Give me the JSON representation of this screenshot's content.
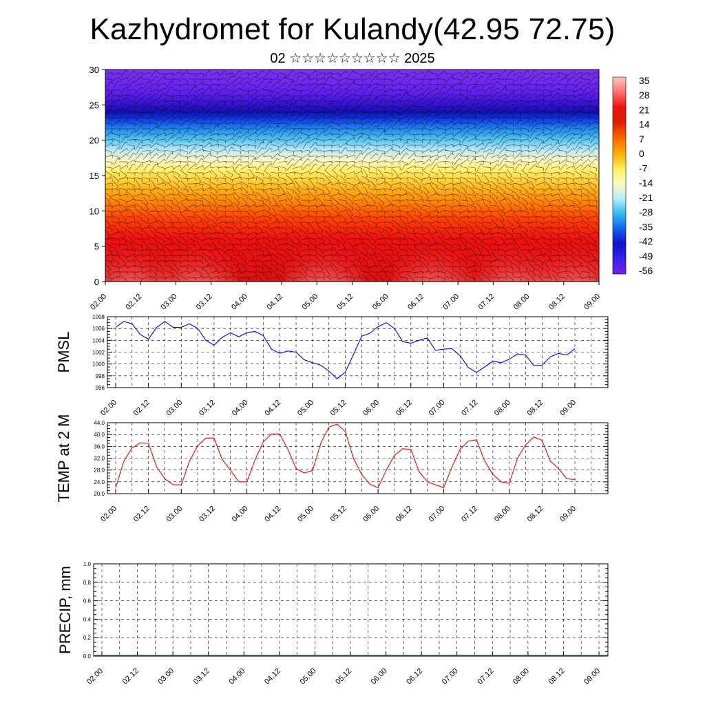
{
  "title": "Kazhydromet for Kulandy(42.95 72.75)",
  "subtitle": "02 ☆☆☆☆☆☆☆☆☆ 2025",
  "time_ticks": [
    "02.00",
    "02.12",
    "03.00",
    "03.12",
    "04.00",
    "04.12",
    "05.00",
    "05.12",
    "06.00",
    "06.12",
    "07.00",
    "07.12",
    "08.00",
    "08.12",
    "09.00"
  ],
  "chart_data": [
    {
      "type": "heatmap",
      "name": "cross-section",
      "ylim": [
        0,
        30
      ],
      "yticks": [
        "0",
        "5",
        "10",
        "15",
        "20",
        "25",
        "30"
      ],
      "colorbar_labels": [
        "35",
        "28",
        "21",
        "14",
        "7",
        "0",
        "-7",
        "-14",
        "-21",
        "-28",
        "-35",
        "-42",
        "-49",
        "-56"
      ],
      "colorbar_colors": [
        "#ffc8c8",
        "#ff7070",
        "#ee1111",
        "#dd2200",
        "#ff6600",
        "#ffaa00",
        "#ffee55",
        "#fffbbb",
        "#b8eef8",
        "#33bbf0",
        "#0e66ee",
        "#1111cc",
        "#3322ee",
        "#7722ee"
      ]
    },
    {
      "type": "line",
      "ylabel": "PMSL",
      "ylim": [
        996,
        1008
      ],
      "yticks": [
        "996",
        "998",
        "1000",
        "1002",
        "1004",
        "1006",
        "1008"
      ],
      "color": "#0000ff",
      "values": [
        1006.2,
        1007.2,
        1006.8,
        1005.0,
        1004.2,
        1006.2,
        1007.2,
        1006.2,
        1006.2,
        1006.8,
        1006.0,
        1004.0,
        1003.2,
        1004.5,
        1005.3,
        1004.6,
        1005.3,
        1005.5,
        1004.8,
        1002.5,
        1001.8,
        1002.2,
        1002.0,
        1000.7,
        1000.2,
        999.8,
        998.8,
        997.5,
        998.6,
        1001.6,
        1004.7,
        1005.2,
        1006.3,
        1007.0,
        1006.0,
        1003.8,
        1003.5,
        1004.0,
        1004.4,
        1002.3,
        1002.5,
        1002.6,
        1001.4,
        999.4,
        998.6,
        999.5,
        1000.5,
        1000.2,
        1000.8,
        1001.7,
        1001.5,
        999.7,
        999.8,
        1001.2,
        1001.8,
        1001.5,
        1002.6
      ]
    },
    {
      "type": "line",
      "ylabel": "TEMP at 2 M",
      "ylim": [
        20,
        44
      ],
      "yticks": [
        "20.0",
        "24.0",
        "28.0",
        "32.0",
        "36.0",
        "40.0",
        "44.0"
      ],
      "color": "#ff0000",
      "values": [
        22.0,
        31.0,
        35.5,
        37.2,
        37.0,
        29.0,
        25.0,
        23.0,
        23.0,
        31.0,
        36.2,
        38.8,
        38.8,
        31.5,
        28.0,
        24.0,
        24.0,
        31.5,
        37.5,
        40.2,
        40.2,
        35.0,
        28.5,
        27.0,
        27.8,
        37.0,
        42.5,
        43.5,
        41.0,
        32.0,
        26.5,
        23.2,
        22.0,
        28.0,
        33.0,
        35.2,
        35.0,
        27.5,
        24.0,
        23.0,
        22.0,
        29.0,
        35.0,
        37.8,
        38.2,
        31.0,
        26.5,
        24.0,
        23.5,
        32.0,
        36.5,
        39.2,
        38.0,
        31.0,
        28.5,
        25.0,
        24.8
      ]
    },
    {
      "type": "bar",
      "ylabel": "PRECIP, mm",
      "ylim": [
        0,
        1
      ],
      "yticks": [
        "0.0",
        "0.2",
        "0.4",
        "0.6",
        "0.8",
        "1.0"
      ],
      "values": [
        0,
        0,
        0,
        0,
        0,
        0,
        0,
        0,
        0,
        0,
        0,
        0,
        0,
        0,
        0,
        0,
        0,
        0,
        0,
        0,
        0,
        0,
        0,
        0,
        0,
        0,
        0,
        0,
        0,
        0,
        0,
        0,
        0,
        0,
        0,
        0,
        0,
        0,
        0,
        0,
        0,
        0,
        0,
        0,
        0,
        0,
        0,
        0,
        0,
        0,
        0,
        0,
        0,
        0,
        0,
        0,
        0
      ]
    }
  ]
}
